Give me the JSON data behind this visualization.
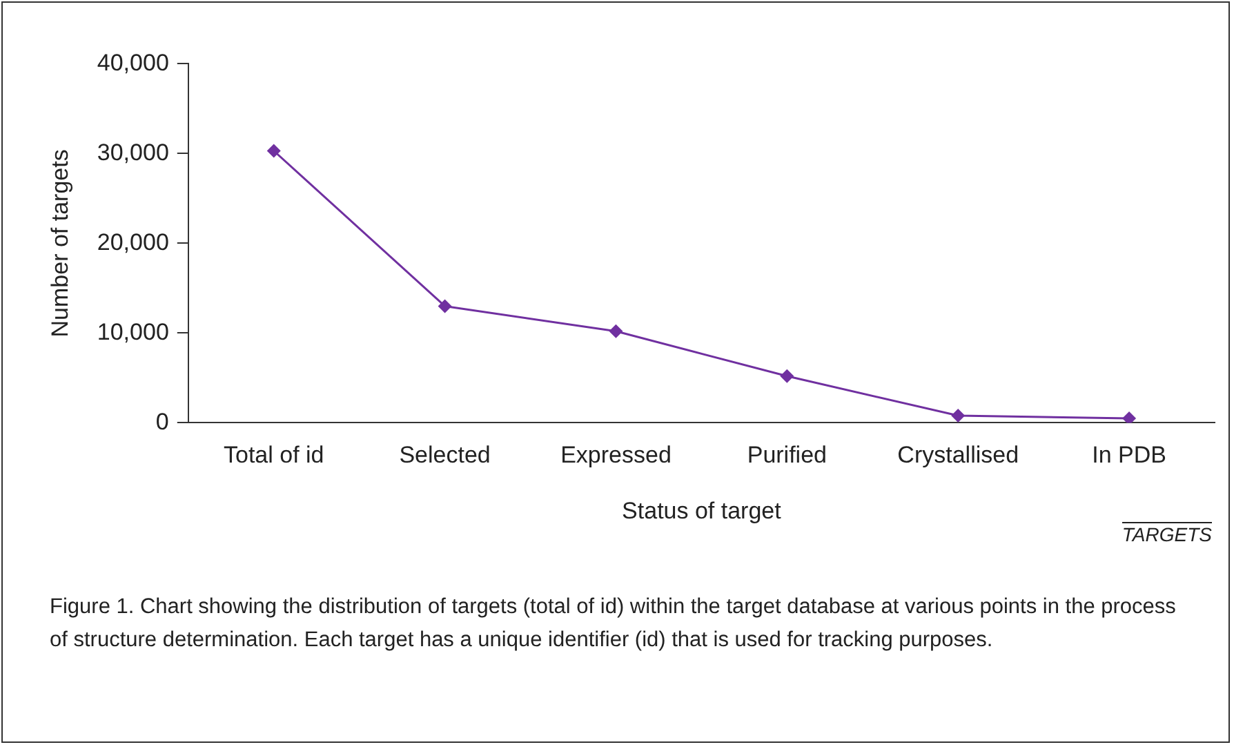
{
  "chart_data": {
    "type": "line",
    "xlabel": "Status of target",
    "ylabel": "Number of targets",
    "categories": [
      "Total of id",
      "Selected",
      "Expressed",
      "Purified",
      "Crystallised",
      "In PDB"
    ],
    "series": [
      {
        "color": "#7030a0",
        "values": [
          30300,
          13000,
          10200,
          5200,
          800,
          500
        ]
      }
    ],
    "ylim": [
      0,
      40000
    ],
    "yticks": [
      {
        "value": 0,
        "label": "0"
      },
      {
        "value": 10000,
        "label": "10,000"
      },
      {
        "value": 20000,
        "label": "20,000"
      },
      {
        "value": 30000,
        "label": "30,000"
      },
      {
        "value": 40000,
        "label": "40,000"
      }
    ],
    "grid": false,
    "legend": false,
    "marker": "diamond",
    "line_style": "solid",
    "annotations": [
      "TARGETS",
      "Figure 1. Chart showing the distribution of targets (total of id) within the target database at various points in the process of structure determination. Each target has a unique identifier (id) that is used for tracking purposes."
    ]
  }
}
